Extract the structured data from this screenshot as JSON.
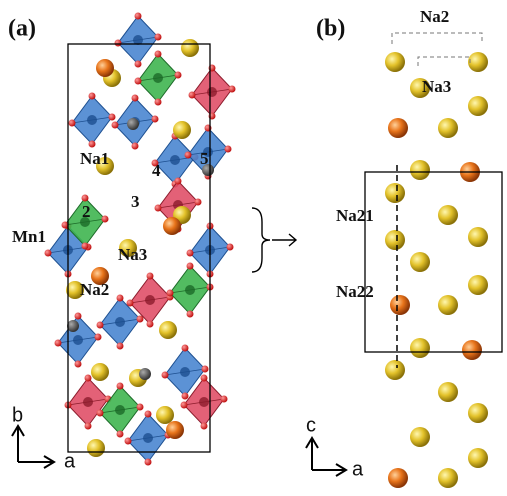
{
  "panel_a": {
    "label": "(a)",
    "sites": [
      "Na1",
      "Na2",
      "Na3",
      "Mn1",
      "2",
      "3",
      "4",
      "5"
    ],
    "axes": [
      "b",
      "a"
    ]
  },
  "panel_b": {
    "label": "(b)",
    "sites": [
      "Na2",
      "Na3",
      "Na21",
      "Na22"
    ],
    "axes": [
      "c",
      "a"
    ]
  }
}
